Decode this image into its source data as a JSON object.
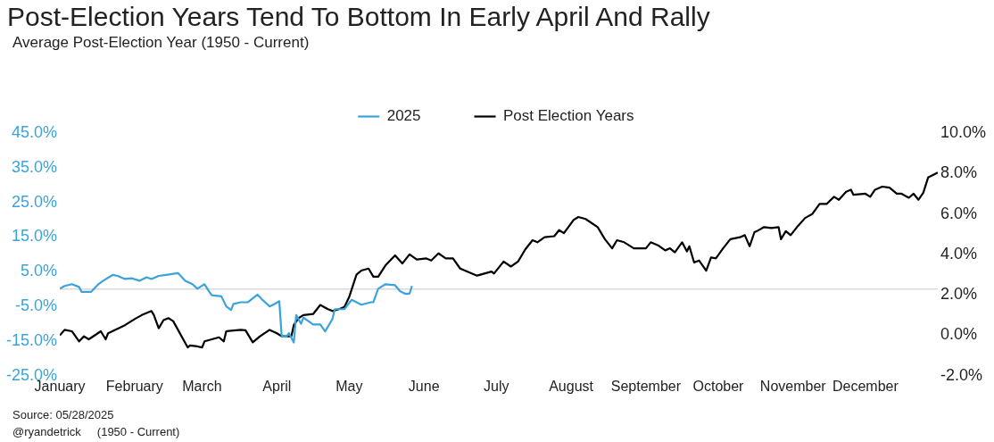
{
  "chart_data": {
    "type": "line",
    "title": "Post-Election Years Tend To Bottom In Early April And Rally",
    "subtitle": "Average Post-Election Year (1950 - Current)",
    "annotations": [
      "Source: 05/28/2025",
      "@ryandetrick     (1950 - Current)"
    ],
    "xlim": [
      "--01-01",
      "--12-31"
    ],
    "xticks": [
      {
        "value": "--01-01",
        "label": "January"
      },
      {
        "value": "--02-01",
        "label": "February"
      },
      {
        "value": "--03-01",
        "label": "March"
      },
      {
        "value": "--04-01",
        "label": "April"
      },
      {
        "value": "--05-01",
        "label": "May"
      },
      {
        "value": "--06-01",
        "label": "June"
      },
      {
        "value": "--07-01",
        "label": "July"
      },
      {
        "value": "--08-01",
        "label": "August"
      },
      {
        "value": "--09-01",
        "label": "September"
      },
      {
        "value": "--10-01",
        "label": "October"
      },
      {
        "value": "--11-01",
        "label": "November"
      },
      {
        "value": "--12-01",
        "label": "December"
      }
    ],
    "ylim": [
      -25,
      45
    ],
    "yticks": [
      {
        "value": -25,
        "label": "-25.0%"
      },
      {
        "value": -15,
        "label": "-15.0%"
      },
      {
        "value": -5,
        "label": "-5.0%"
      },
      {
        "value": 5,
        "label": "5.0%"
      },
      {
        "value": 15,
        "label": "15.0%"
      },
      {
        "value": 25,
        "label": "25.0%"
      },
      {
        "value": 35,
        "label": "35.0%"
      },
      {
        "value": 45,
        "label": "45.0%"
      }
    ],
    "y2lim": [
      -2,
      10
    ],
    "y2ticks": [
      {
        "value": -2,
        "label": "-2.0%"
      },
      {
        "value": 0,
        "label": "0.0%"
      },
      {
        "value": 2,
        "label": "2.0%"
      },
      {
        "value": 4,
        "label": "4.0%"
      },
      {
        "value": 6,
        "label": "6.0%"
      },
      {
        "value": 8,
        "label": "8.0%"
      },
      {
        "value": 10,
        "label": "10.0%"
      }
    ],
    "ref_lines": [
      {
        "axis": "y",
        "value": 0,
        "color": "#d9d9d9"
      }
    ],
    "legend": "top",
    "grid": false,
    "marker": "none",
    "line_style": "solid",
    "series": [
      {
        "name": "2025",
        "color": "#3aa3dc",
        "axis": "y",
        "x": [
          "--01-01",
          "--01-03",
          "--01-06",
          "--01-09",
          "--01-10",
          "--01-14",
          "--01-17",
          "--01-19",
          "--01-23",
          "--01-25",
          "--01-28",
          "--01-31",
          "--02-03",
          "--02-06",
          "--02-08",
          "--02-11",
          "--02-14",
          "--02-19",
          "--02-22",
          "--02-25",
          "--02-27",
          "--03-02",
          "--03-04",
          "--03-05",
          "--03-09",
          "--03-11",
          "--03-13",
          "--03-14",
          "--03-17",
          "--03-20",
          "--03-24",
          "--03-26",
          "--03-29",
          "--03-31",
          "--04-02",
          "--04-03",
          "--04-05",
          "--04-06",
          "--04-08",
          "--04-09",
          "--04-11",
          "--04-12",
          "--04-16",
          "--04-19",
          "--04-21",
          "--04-24",
          "--04-25",
          "--04-29",
          "--05-02",
          "--05-06",
          "--05-10",
          "--05-11",
          "--05-13",
          "--05-16",
          "--05-20",
          "--05-22",
          "--05-24",
          "--05-26",
          "--05-27"
        ],
        "values": [
          0.1,
          0.9,
          1.4,
          0.6,
          -0.8,
          -0.8,
          1.4,
          2.4,
          4.1,
          3.8,
          2.9,
          3.1,
          2.4,
          3.4,
          2.9,
          3.8,
          4.1,
          4.6,
          2.4,
          1.4,
          0.1,
          1.4,
          -0.8,
          -1.8,
          -2.1,
          -5.0,
          -6.0,
          -4.3,
          -3.8,
          -3.8,
          -1.6,
          -3.1,
          -5.0,
          -4.3,
          -3.5,
          -13.7,
          -13.7,
          -12.7,
          -15.4,
          -7.5,
          -10.0,
          -8.2,
          -10.2,
          -10.2,
          -12.2,
          -8.7,
          -5.8,
          -5.8,
          -3.1,
          -4.5,
          -3.8,
          -3.8,
          0.1,
          1.4,
          1.1,
          -0.6,
          -1.3,
          -1.3,
          0.9
        ]
      },
      {
        "name": "Post Election Years",
        "color": "#000000",
        "axis": "y2",
        "x": [
          "--01-01",
          "--01-03",
          "--01-06",
          "--01-09",
          "--01-11",
          "--01-13",
          "--01-18",
          "--01-20",
          "--01-21",
          "--01-28",
          "--02-01",
          "--02-04",
          "--02-08",
          "--02-09",
          "--02-11",
          "--02-13",
          "--02-15",
          "--02-17",
          "--02-19",
          "--02-23",
          "--02-24",
          "--02-27",
          "--03-01",
          "--03-02",
          "--03-08",
          "--03-10",
          "--03-11",
          "--03-17",
          "--03-19",
          "--03-22",
          "--03-25",
          "--03-29",
          "--04-01",
          "--04-03",
          "--04-07",
          "--04-08",
          "--04-10",
          "--04-12",
          "--04-16",
          "--04-19",
          "--04-22",
          "--04-24",
          "--04-27",
          "--04-29",
          "--05-01",
          "--05-04",
          "--05-06",
          "--05-09",
          "--05-11",
          "--05-13",
          "--05-16",
          "--05-20",
          "--05-23",
          "--05-26",
          "--05-29",
          "--06-02",
          "--06-04",
          "--06-07",
          "--06-10",
          "--06-13",
          "--06-16",
          "--06-21",
          "--06-23",
          "--06-29",
          "--06-30",
          "--07-04",
          "--07-07",
          "--07-10",
          "--07-13",
          "--07-16",
          "--07-18",
          "--07-21",
          "--07-25",
          "--07-27",
          "--07-29",
          "--08-02",
          "--08-04",
          "--08-07",
          "--08-12",
          "--08-15",
          "--08-18",
          "--08-20",
          "--08-23",
          "--08-27",
          "--09-01",
          "--09-03",
          "--09-06",
          "--09-09",
          "--09-11",
          "--09-13",
          "--09-16",
          "--09-18",
          "--09-19",
          "--09-21",
          "--09-23",
          "--09-26",
          "--09-28",
          "--09-30",
          "--10-03",
          "--10-06",
          "--10-10",
          "--10-12",
          "--10-14",
          "--10-16",
          "--10-17",
          "--10-20",
          "--10-23",
          "--10-26",
          "--10-27",
          "--10-29",
          "--10-31",
          "--11-03",
          "--11-06",
          "--11-09",
          "--11-12",
          "--11-15",
          "--11-18",
          "--11-20",
          "--11-23",
          "--11-25",
          "--11-26",
          "--12-01",
          "--12-03",
          "--12-05",
          "--12-08",
          "--12-11",
          "--12-14",
          "--12-16",
          "--12-19",
          "--12-21",
          "--12-23",
          "--12-25",
          "--12-27",
          "--12-31"
        ],
        "values": [
          0.0,
          0.27,
          0.2,
          -0.3,
          -0.05,
          -0.2,
          0.2,
          -0.2,
          0.1,
          0.5,
          0.8,
          1.0,
          1.2,
          1.0,
          0.35,
          0.75,
          0.85,
          0.7,
          0.27,
          -0.6,
          -0.5,
          -0.55,
          -0.6,
          -0.3,
          -0.1,
          -0.3,
          0.2,
          0.27,
          0.25,
          -0.35,
          -0.05,
          0.27,
          0.1,
          -0.05,
          -0.05,
          0.5,
          0.85,
          1.0,
          1.05,
          1.5,
          1.3,
          1.2,
          1.3,
          1.4,
          1.9,
          3.0,
          3.2,
          3.3,
          2.9,
          2.9,
          3.45,
          3.95,
          3.55,
          4.0,
          3.75,
          3.8,
          3.7,
          4.05,
          3.8,
          3.8,
          3.3,
          3.05,
          2.95,
          3.15,
          3.05,
          3.65,
          3.4,
          3.65,
          4.25,
          4.7,
          4.6,
          4.85,
          4.9,
          5.2,
          5.05,
          5.7,
          5.85,
          5.75,
          5.35,
          4.75,
          4.3,
          4.7,
          4.6,
          4.3,
          4.3,
          4.6,
          4.45,
          4.2,
          4.3,
          4.1,
          4.6,
          4.15,
          4.4,
          3.6,
          3.7,
          3.2,
          3.85,
          3.8,
          4.3,
          4.75,
          4.85,
          4.95,
          4.4,
          5.1,
          5.15,
          5.35,
          5.3,
          5.35,
          4.75,
          5.15,
          4.95,
          5.4,
          5.8,
          6.0,
          6.5,
          6.5,
          6.85,
          6.7,
          7.1,
          7.2,
          6.95,
          7.0,
          6.85,
          7.2,
          7.35,
          7.3,
          7.0,
          7.0,
          6.8,
          7.0,
          6.7,
          7.05,
          7.8,
          8.05
        ]
      }
    ]
  }
}
